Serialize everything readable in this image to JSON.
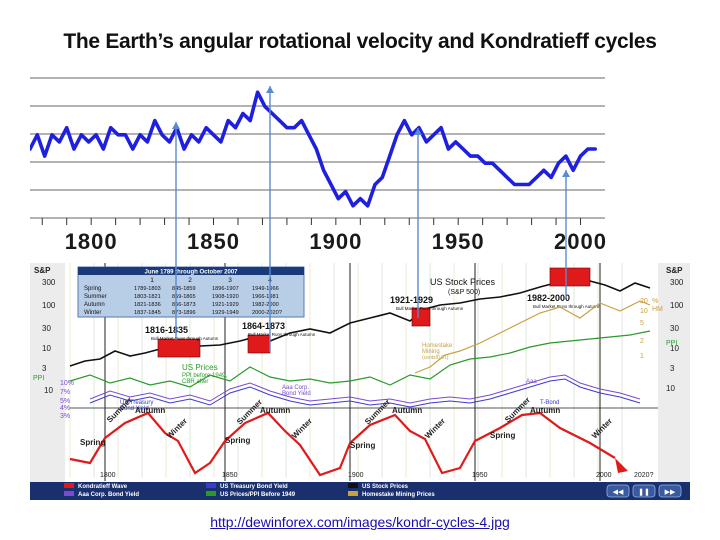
{
  "title": "The Earth’s angular rotational velocity and Kondratieff cycles",
  "source_link": "http://dewinforex.com/images/kondr-cycles-4.jpg",
  "chart_data": [
    {
      "type": "line",
      "title": "",
      "x_ticks": [
        1800,
        1850,
        1900,
        1950,
        2000
      ],
      "xlim": [
        1775,
        2010
      ],
      "grid": true,
      "series": [
        {
          "color": "#1f1fe0",
          "x": [
            1775,
            1778,
            1781,
            1784,
            1787,
            1790,
            1793,
            1796,
            1799,
            1802,
            1805,
            1808,
            1811,
            1814,
            1817,
            1820,
            1823,
            1826,
            1829,
            1832,
            1835,
            1838,
            1841,
            1844,
            1847,
            1850,
            1853,
            1856,
            1859,
            1862,
            1865,
            1868,
            1871,
            1874,
            1877,
            1880,
            1883,
            1886,
            1889,
            1892,
            1895,
            1898,
            1901,
            1904,
            1907,
            1910,
            1913,
            1916,
            1919,
            1922,
            1925,
            1928,
            1931,
            1934,
            1937,
            1940,
            1943,
            1946,
            1949,
            1952,
            1955,
            1958,
            1961,
            1964,
            1967,
            1970,
            1973,
            1976,
            1979,
            1982,
            1985,
            1988,
            1991,
            1994,
            1997,
            2000,
            2003,
            2006
          ],
          "y": [
            4,
            6,
            3,
            6,
            5,
            7,
            4,
            6,
            5,
            6,
            4,
            7,
            6,
            6,
            4,
            6,
            5,
            8,
            6,
            5,
            7,
            4,
            6,
            5,
            7,
            6,
            5,
            8,
            7,
            9,
            8,
            12,
            10,
            9,
            8,
            7,
            7,
            8,
            6,
            4,
            1,
            -1,
            -3,
            -2,
            -4,
            -3,
            -4,
            -1,
            0,
            3,
            6,
            8,
            6,
            7,
            5,
            6,
            7,
            4,
            5,
            4,
            3,
            3,
            2,
            2,
            1,
            0,
            -1,
            -1,
            -1,
            0,
            1,
            0,
            2,
            3,
            1,
            3,
            4,
            4
          ]
        }
      ]
    },
    {
      "type": "line",
      "title": "US Stock Prices",
      "subtitle": "(S&P 500)",
      "left_axis_label": "S&P",
      "right_axis_label": "S&P",
      "left_ticks": [
        "300",
        "100",
        "30",
        "10",
        "3"
      ],
      "right_ticks": [
        "300",
        "100",
        "30",
        "10",
        "3"
      ],
      "ppi_labels": [
        "PPI",
        "10",
        "PPI"
      ],
      "yield_ticks": [
        "10%",
        "7%",
        "5%",
        "4%",
        "3%"
      ],
      "right_extra_ticks": [
        "20",
        "10",
        "5",
        "2",
        "1",
        "%",
        "HM",
        "PPI"
      ],
      "table": {
        "header": "June 1789 through October 2007",
        "columns": [
          "1",
          "2",
          "3",
          "4"
        ],
        "rows": [
          {
            "season": "Spring",
            "cells": [
              "1789-1803",
              "845-1859",
              "1896-1907",
              "1949-1966"
            ]
          },
          {
            "season": "Summer",
            "cells": [
              "1803-1821",
              "859-1865",
              "1908-1920",
              "1966-1981"
            ]
          },
          {
            "season": "Autumn",
            "cells": [
              "1821-1836",
              "866-1873",
              "1921-1929",
              "1982-2000"
            ]
          },
          {
            "season": "Winter",
            "cells": [
              "1837-1845",
              "873-1896",
              "1929-1949",
              "2000-2020?"
            ]
          }
        ]
      },
      "peaks": [
        {
          "label": "1816-1835",
          "note": "Bull Market Runs through Autumn"
        },
        {
          "label": "1864-1873",
          "note": "Bull Market Runs through Autumn"
        },
        {
          "label": "1921-1929",
          "note": "Bull Market Runs through Autumn"
        },
        {
          "label": "1982-2000",
          "note": "Bull Market Runs through Autumn"
        }
      ],
      "annotations": [
        "US Prices",
        "PPI before 1949,",
        "CBR after",
        "US Treasury",
        "Bond Yield",
        "Aaa Corp.",
        "Bond Yield",
        "Homestake",
        "Mining",
        "(cents/0.01)",
        "Aaa",
        "T-Bond"
      ],
      "season_labels": [
        "Spring",
        "Summer",
        "Autumn",
        "Winter",
        "Spring",
        "Summer",
        "Autumn",
        "Winter",
        "Spring",
        "Summer",
        "Autumn",
        "Winter",
        "Spring",
        "Summer",
        "Autumn",
        "Winter"
      ],
      "x_axis_labels": [
        "1800",
        "1850",
        "1900",
        "1950",
        "2000",
        "2020?"
      ],
      "legend": [
        {
          "label": "Kondratieff Wave",
          "color": "#e01a1a"
        },
        {
          "label": "US Treasury Bond Yield",
          "color": "#3a3ad0"
        },
        {
          "label": "US Stock Prices",
          "color": "#111111"
        },
        {
          "label": "Aaa Corp. Bond Yield",
          "color": "#7a4ad0"
        },
        {
          "label": "US Prices/PPI Before 1949",
          "color": "#2a9a2a"
        },
        {
          "label": "Homestake Mining Prices",
          "color": "#c8a040"
        }
      ],
      "nav_buttons": [
        "rewind",
        "pause",
        "forward"
      ],
      "colors": {
        "sp500": "#111111",
        "kwave": "#e01a1a",
        "prices": "#2a9a2a",
        "treasury": "#3a3ad0",
        "aaa": "#7a4ad0",
        "homestake": "#c8a040",
        "table_bg": "#b8cde6",
        "header_bg": "#1a3a7a",
        "legend_bar": "#1a2f6e",
        "guide": "#5a8ad0"
      }
    }
  ]
}
